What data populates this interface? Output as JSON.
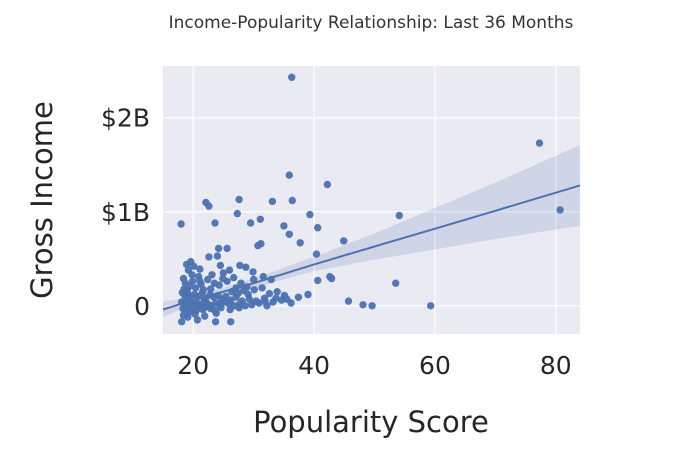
{
  "chart_data": {
    "type": "scatter",
    "title": "Income-Popularity Relationship: Last 36 Months",
    "xlabel": "Popularity Score",
    "ylabel": "Gross Income",
    "xlim": [
      15,
      84
    ],
    "ylim": [
      -0.3,
      2.55
    ],
    "xticks": [
      {
        "value": 20,
        "label": "20"
      },
      {
        "value": 40,
        "label": "40"
      },
      {
        "value": 60,
        "label": "60"
      },
      {
        "value": 80,
        "label": "80"
      }
    ],
    "yticks": [
      {
        "value": 0,
        "label": "0"
      },
      {
        "value": 1,
        "label": "$1B"
      },
      {
        "value": 2,
        "label": "$2B"
      }
    ],
    "y_units": "billions USD",
    "grid": true,
    "regression": {
      "x": [
        15,
        20,
        30,
        40,
        50,
        60,
        70,
        84
      ],
      "y": [
        -0.04,
        0.06,
        0.24,
        0.44,
        0.63,
        0.82,
        1.01,
        1.28
      ],
      "ci_lower": [
        -0.12,
        0.02,
        0.19,
        0.37,
        0.49,
        0.6,
        0.71,
        0.85
      ],
      "ci_upper": [
        0.04,
        0.1,
        0.29,
        0.52,
        0.77,
        1.04,
        1.31,
        1.71
      ]
    },
    "series": [
      {
        "points": [
          [
            36.3,
            2.43
          ],
          [
            77.3,
            1.73
          ],
          [
            80.7,
            1.02
          ],
          [
            35.9,
            1.39
          ],
          [
            42.2,
            1.29
          ],
          [
            18.0,
            0.87
          ],
          [
            22.1,
            1.1
          ],
          [
            22.6,
            1.06
          ],
          [
            27.6,
            1.13
          ],
          [
            33.1,
            1.11
          ],
          [
            36.4,
            1.12
          ],
          [
            39.3,
            0.97
          ],
          [
            31.1,
            0.92
          ],
          [
            27.3,
            0.98
          ],
          [
            29.5,
            0.88
          ],
          [
            23.6,
            0.88
          ],
          [
            35.0,
            0.85
          ],
          [
            35.9,
            0.76
          ],
          [
            37.7,
            0.67
          ],
          [
            40.6,
            0.83
          ],
          [
            44.9,
            0.69
          ],
          [
            54.1,
            0.96
          ],
          [
            31.2,
            0.66
          ],
          [
            30.7,
            0.64
          ],
          [
            24.2,
            0.61
          ],
          [
            25.6,
            0.61
          ],
          [
            22.6,
            0.52
          ],
          [
            24.0,
            0.53
          ],
          [
            19.6,
            0.47
          ],
          [
            40.4,
            0.55
          ],
          [
            42.6,
            0.31
          ],
          [
            42.9,
            0.29
          ],
          [
            40.6,
            0.27
          ],
          [
            53.5,
            0.24
          ],
          [
            45.7,
            0.05
          ],
          [
            48.1,
            0.01
          ],
          [
            49.6,
            0.0
          ],
          [
            59.3,
            0.0
          ],
          [
            39.0,
            0.12
          ],
          [
            37.4,
            0.09
          ],
          [
            35.5,
            0.07
          ],
          [
            33.7,
            0.08
          ],
          [
            27.7,
            0.43
          ],
          [
            28.7,
            0.41
          ],
          [
            29.9,
            0.36
          ],
          [
            31.6,
            0.31
          ],
          [
            32.9,
            0.28
          ],
          [
            26.0,
            0.38
          ],
          [
            25.0,
            0.35
          ],
          [
            24.5,
            0.43
          ],
          [
            21.1,
            0.39
          ],
          [
            20.1,
            0.42
          ],
          [
            18.9,
            0.44
          ],
          [
            19.2,
            0.38
          ],
          [
            19.8,
            0.33
          ],
          [
            18.4,
            0.29
          ],
          [
            18.7,
            0.24
          ],
          [
            19.4,
            0.21
          ],
          [
            19.9,
            0.26
          ],
          [
            20.4,
            0.19
          ],
          [
            21.3,
            0.23
          ],
          [
            20.9,
            0.31
          ],
          [
            22.4,
            0.28
          ],
          [
            23.1,
            0.33
          ],
          [
            23.5,
            0.24
          ],
          [
            24.3,
            0.22
          ],
          [
            25.6,
            0.26
          ],
          [
            26.7,
            0.3
          ],
          [
            27.9,
            0.24
          ],
          [
            28.9,
            0.2
          ],
          [
            30.1,
            0.17
          ],
          [
            31.4,
            0.19
          ],
          [
            32.6,
            0.13
          ],
          [
            33.9,
            0.15
          ],
          [
            35.1,
            0.11
          ],
          [
            18.2,
            0.14
          ],
          [
            18.6,
            0.11
          ],
          [
            19.1,
            0.13
          ],
          [
            19.5,
            0.09
          ],
          [
            20.2,
            0.12
          ],
          [
            20.8,
            0.1
          ],
          [
            21.5,
            0.14
          ],
          [
            22.1,
            0.08
          ],
          [
            22.8,
            0.12
          ],
          [
            23.4,
            0.09
          ],
          [
            24.1,
            0.11
          ],
          [
            24.7,
            0.07
          ],
          [
            25.4,
            0.1
          ],
          [
            26.2,
            0.06
          ],
          [
            27.1,
            0.09
          ],
          [
            28.1,
            0.05
          ],
          [
            29.3,
            0.07
          ],
          [
            30.4,
            0.05
          ],
          [
            31.8,
            0.08
          ],
          [
            33.2,
            0.04
          ],
          [
            34.6,
            0.06
          ],
          [
            36.2,
            0.03
          ],
          [
            18.1,
            0.04
          ],
          [
            18.5,
            0.02
          ],
          [
            18.9,
            0.06
          ],
          [
            19.3,
            0.01
          ],
          [
            19.7,
            0.04
          ],
          [
            20.1,
            0.0
          ],
          [
            20.6,
            0.03
          ],
          [
            21.2,
            0.01
          ],
          [
            21.8,
            0.05
          ],
          [
            22.4,
            0.02
          ],
          [
            23.0,
            0.0
          ],
          [
            23.7,
            0.03
          ],
          [
            24.4,
            0.01
          ],
          [
            25.1,
            0.04
          ],
          [
            25.9,
            0.02
          ],
          [
            26.8,
            0.0
          ],
          [
            27.7,
            0.02
          ],
          [
            28.6,
            0.0
          ],
          [
            29.7,
            0.01
          ],
          [
            30.9,
            0.03
          ],
          [
            32.2,
            0.0
          ],
          [
            18.3,
            -0.03
          ],
          [
            18.8,
            -0.05
          ],
          [
            19.2,
            -0.02
          ],
          [
            19.6,
            -0.06
          ],
          [
            20.0,
            -0.03
          ],
          [
            20.5,
            -0.05
          ],
          [
            21.0,
            -0.02
          ],
          [
            21.6,
            -0.04
          ],
          [
            22.2,
            -0.01
          ],
          [
            22.9,
            -0.03
          ],
          [
            23.6,
            -0.05
          ],
          [
            24.6,
            -0.02
          ],
          [
            26.1,
            -0.04
          ],
          [
            27.6,
            -0.02
          ],
          [
            18.4,
            -0.1
          ],
          [
            19.1,
            -0.12
          ],
          [
            20.3,
            -0.09
          ],
          [
            21.9,
            -0.11
          ],
          [
            23.8,
            -0.08
          ],
          [
            18.1,
            -0.17
          ],
          [
            20.7,
            -0.15
          ],
          [
            23.7,
            -0.17
          ],
          [
            26.2,
            -0.17
          ],
          [
            18.5,
            0.18
          ],
          [
            19.0,
            0.17
          ],
          [
            21.7,
            0.17
          ],
          [
            22.9,
            0.18
          ],
          [
            26.4,
            0.15
          ],
          [
            27.4,
            0.13
          ],
          [
            28.3,
            0.16
          ],
          [
            29.1,
            0.12
          ],
          [
            21.1,
            0.26
          ],
          [
            24.9,
            0.29
          ],
          [
            27.1,
            0.19
          ],
          [
            31.9,
            0.05
          ],
          [
            30.0,
            0.28
          ]
        ]
      }
    ]
  }
}
